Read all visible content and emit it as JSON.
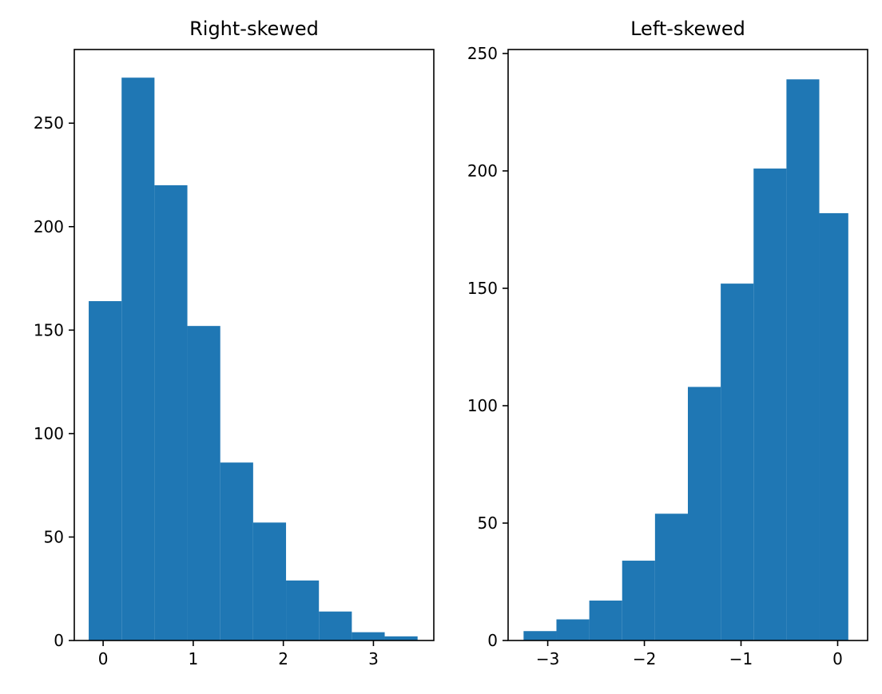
{
  "chart_data": [
    {
      "type": "bar",
      "title": "Right-skewed",
      "xlabel": "",
      "ylabel": "",
      "xlim": [
        -0.32,
        3.67
      ],
      "ylim": [
        0,
        285.6
      ],
      "bin_edges": [
        -0.16,
        0.205,
        0.57,
        0.935,
        1.3,
        1.665,
        2.03,
        2.395,
        2.76,
        3.125,
        3.49
      ],
      "values": [
        164,
        272,
        220,
        152,
        86,
        57,
        29,
        14,
        4,
        2
      ],
      "x_ticks": [
        0,
        1,
        2,
        3
      ],
      "x_tick_labels": [
        "0",
        "1",
        "2",
        "3"
      ],
      "y_ticks": [
        0,
        50,
        100,
        150,
        200,
        250
      ],
      "y_tick_labels": [
        "0",
        "50",
        "100",
        "150",
        "200",
        "250"
      ],
      "grid": false,
      "legend": "none"
    },
    {
      "type": "bar",
      "title": "Left-skewed",
      "xlabel": "",
      "ylabel": "",
      "xlim": [
        -3.41,
        0.31
      ],
      "ylim": [
        0,
        251.7
      ],
      "bin_edges": [
        -3.25,
        -2.91,
        -2.57,
        -2.23,
        -1.89,
        -1.55,
        -1.21,
        -0.87,
        -0.53,
        -0.19,
        0.11
      ],
      "values": [
        4,
        9,
        17,
        34,
        54,
        108,
        152,
        201,
        239,
        182
      ],
      "x_ticks": [
        -3,
        -2,
        -1,
        0
      ],
      "x_tick_labels": [
        "−3",
        "−2",
        "−1",
        "0"
      ],
      "y_ticks": [
        0,
        50,
        100,
        150,
        200,
        250
      ],
      "y_tick_labels": [
        "0",
        "50",
        "100",
        "150",
        "200",
        "250"
      ],
      "grid": false,
      "legend": "none"
    }
  ],
  "colors": {
    "bar": "#1f77b4",
    "axis": "#000000"
  }
}
